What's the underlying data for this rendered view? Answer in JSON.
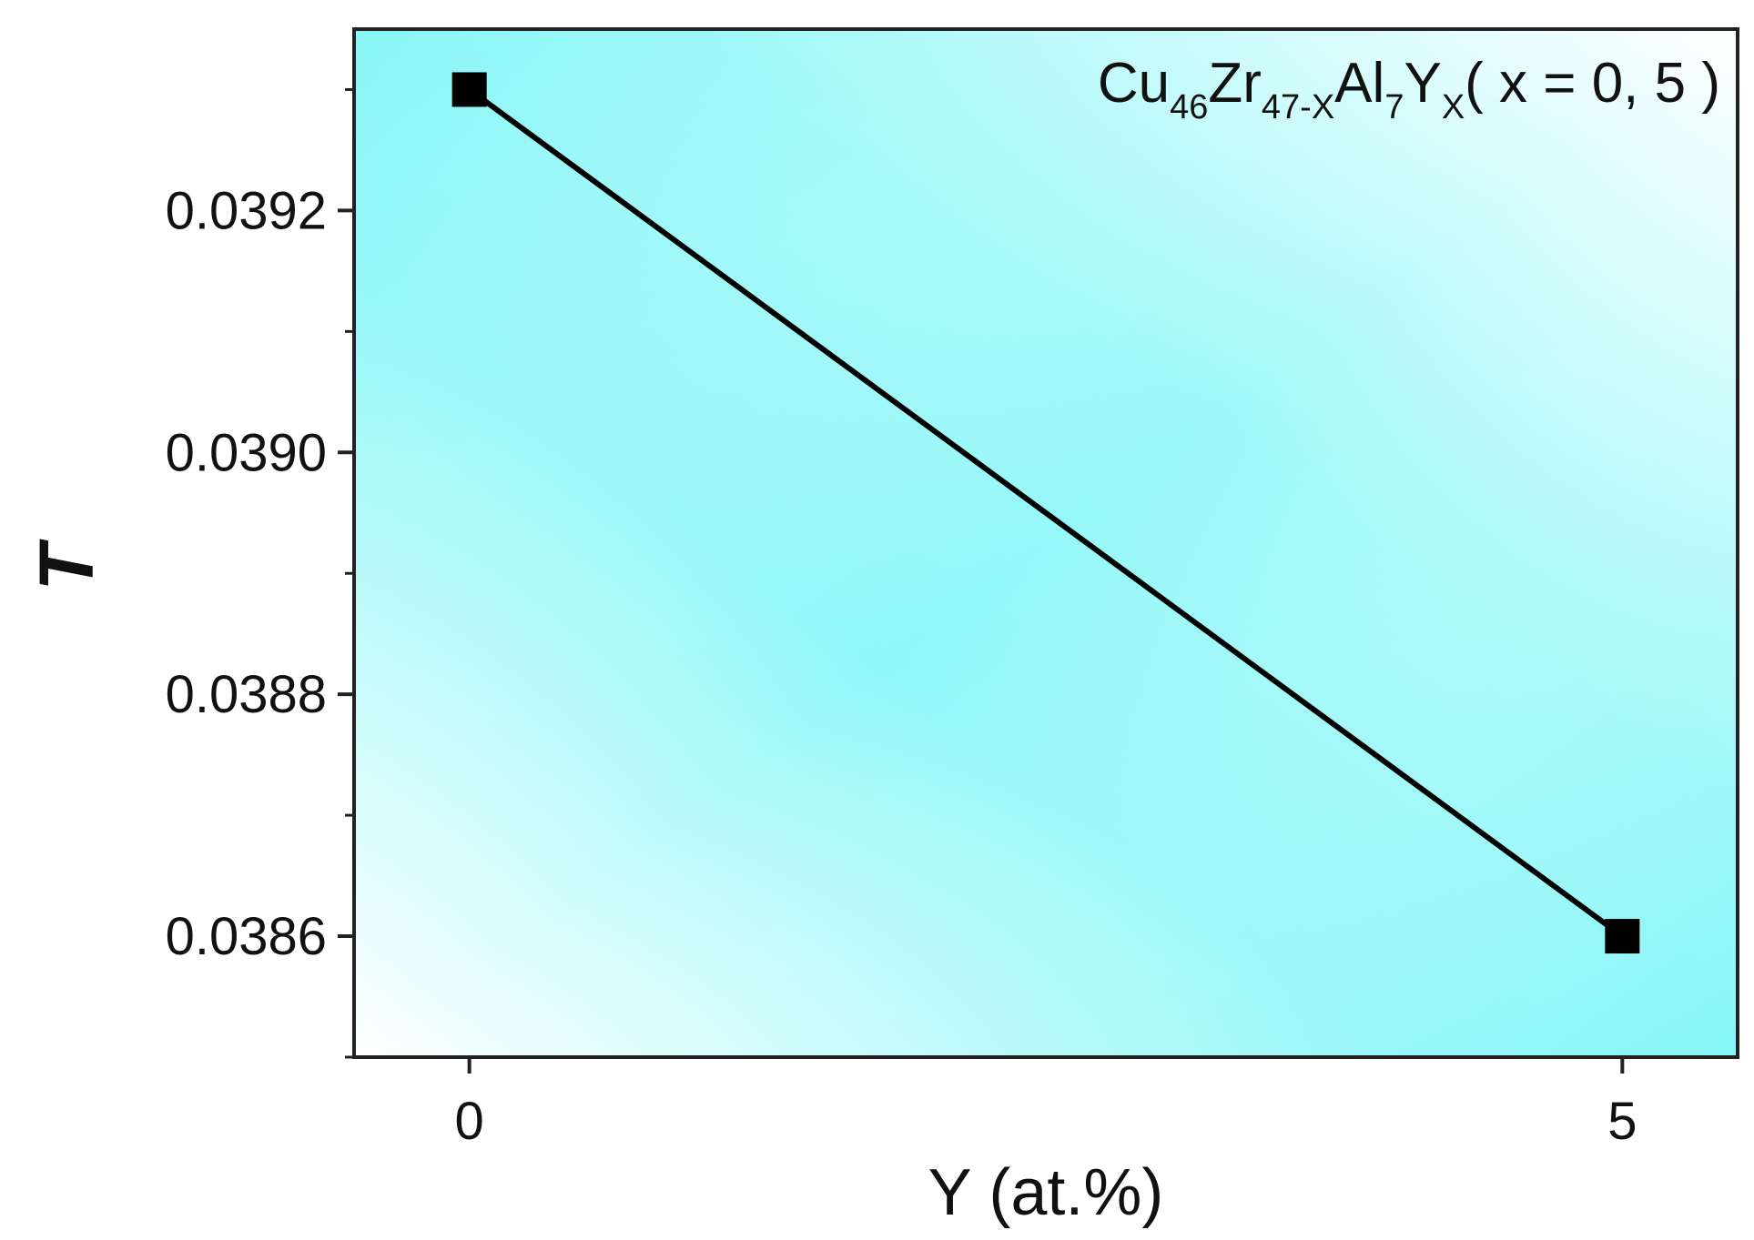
{
  "chart_data": {
    "type": "line",
    "title": "",
    "xlabel": "Y (at.%)",
    "ylabel": "T",
    "annotation": {
      "parts": [
        {
          "text": "Cu",
          "sub": false
        },
        {
          "text": "46",
          "sub": true
        },
        {
          "text": "Zr",
          "sub": false
        },
        {
          "text": "47-X",
          "sub": true
        },
        {
          "text": "Al",
          "sub": false
        },
        {
          "text": "7",
          "sub": true
        },
        {
          "text": "Y",
          "sub": false
        },
        {
          "text": "X",
          "sub": true
        },
        {
          "text": "( x = 0, 5 )",
          "sub": false
        }
      ]
    },
    "xlim": [
      -0.5,
      5.5
    ],
    "ylim": [
      0.0385,
      0.03935
    ],
    "x_ticks": [
      0,
      5
    ],
    "x_tick_labels": [
      "0",
      "5"
    ],
    "y_ticks": [
      0.0386,
      0.0388,
      0.039,
      0.0392
    ],
    "y_tick_labels": [
      "0.0386",
      "0.0388",
      "0.0390",
      "0.0392"
    ],
    "y_minor_ticks": [
      0.0385,
      0.0387,
      0.0389,
      0.0391,
      0.0393
    ],
    "series": [
      {
        "marker": "square",
        "color": "#000000",
        "x": [
          0,
          5
        ],
        "y": [
          0.0393,
          0.0386
        ]
      }
    ],
    "grid": false,
    "background": {
      "from": "#ffffff",
      "to": "#7ef5f5",
      "style": "diagonal gradient"
    }
  }
}
